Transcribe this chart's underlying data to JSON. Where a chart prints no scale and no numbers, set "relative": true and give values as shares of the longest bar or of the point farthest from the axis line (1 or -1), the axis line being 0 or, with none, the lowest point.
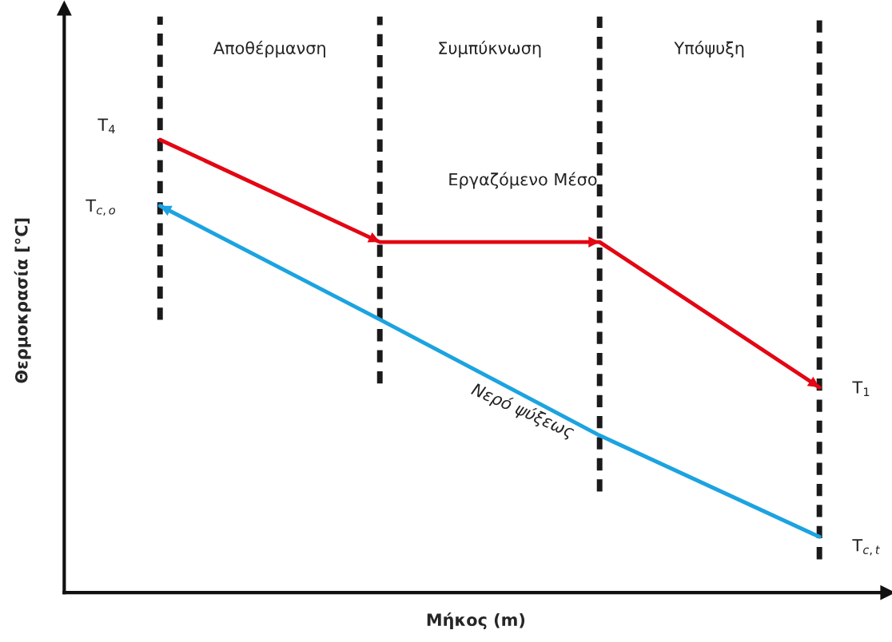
{
  "chart_data": {
    "type": "line",
    "relative": true,
    "xlabel": "Μήκος (m)",
    "ylabel": "Θερμοκρασία [°C]",
    "categories": [
      null,
      null,
      null,
      null
    ],
    "series": [
      {
        "name": "Εργαζόμενο Μέσο",
        "color": "#e30613",
        "values": [
          1,
          0.774,
          0.774,
          0.453
        ]
      },
      {
        "name": "Νερό ψύξεως",
        "color": "#1ca3e0",
        "values": [
          0.854,
          0.603,
          0.347,
          0.123
        ]
      }
    ],
    "annotations": [
      "Αποθέρμανση",
      "Συμπύκνωση",
      "Υπόψυξη",
      "T$_{4}$",
      "T$_{c,o}$",
      "T$_{1}$",
      "T$_{c,t}$"
    ],
    "grid": "x",
    "legend": false,
    "marker": "none",
    "line_style": "solid"
  }
}
